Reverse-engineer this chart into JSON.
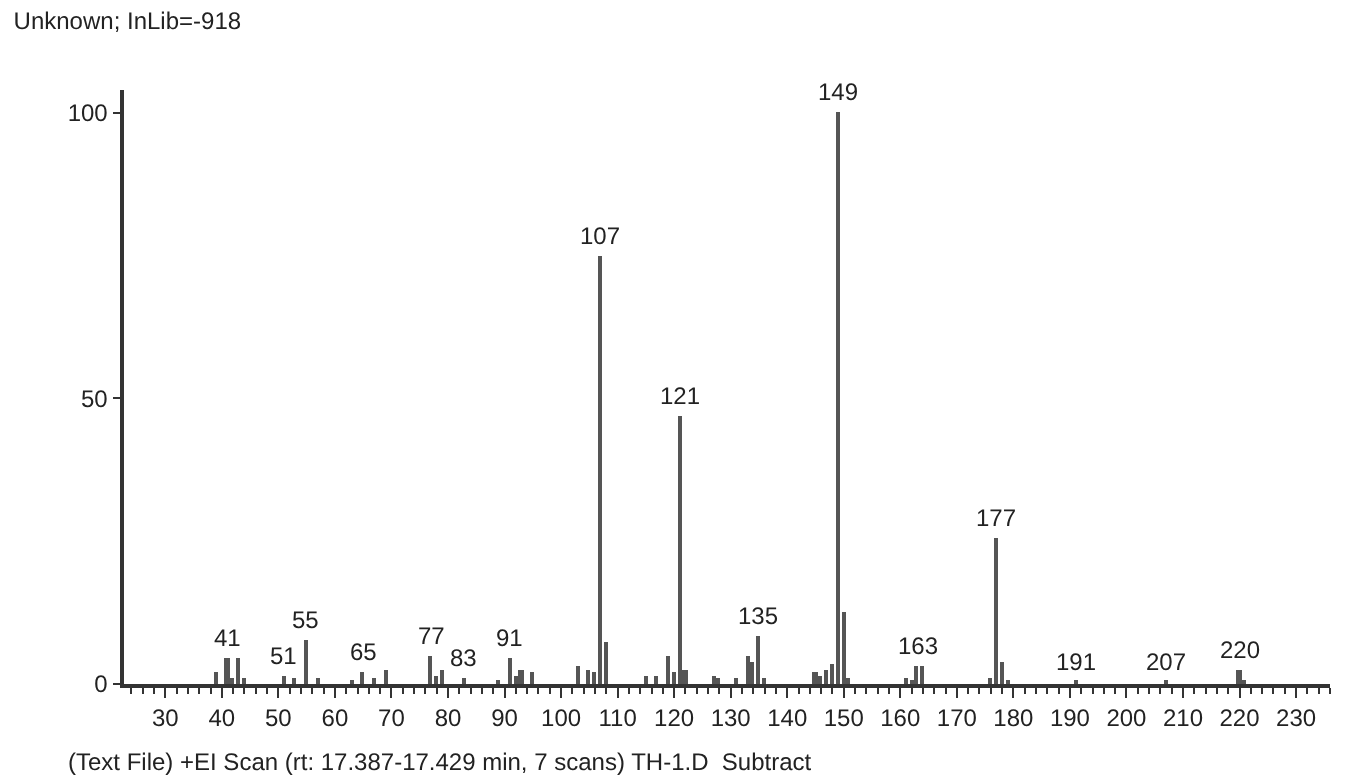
{
  "chart_data": {
    "type": "bar",
    "title": "Unknown; InLib=-918",
    "x": [
      39,
      41,
      42,
      43,
      44,
      51,
      53,
      55,
      57,
      63,
      65,
      67,
      69,
      77,
      78,
      79,
      83,
      89,
      91,
      92,
      93,
      95,
      103,
      105,
      106,
      107,
      108,
      115,
      117,
      119,
      120,
      121,
      122,
      127,
      128,
      131,
      133,
      134,
      135,
      136,
      145,
      146,
      147,
      148,
      149,
      150,
      151,
      161,
      162,
      163,
      164,
      176,
      177,
      178,
      179,
      191,
      207,
      220,
      221
    ],
    "values": [
      2,
      4.6,
      1,
      4.6,
      1,
      1.5,
      1,
      7.7,
      1,
      0.5,
      2,
      1,
      2.5,
      5,
      1.5,
      2.5,
      1,
      0.5,
      4.6,
      1.5,
      2.5,
      2,
      3,
      2.5,
      2,
      75,
      7.4,
      1.5,
      1.5,
      5,
      2,
      47,
      2.5,
      1.5,
      1,
      1,
      5,
      4,
      8.5,
      1,
      2,
      1.5,
      2.5,
      3.5,
      100,
      12.7,
      1,
      1,
      0.5,
      3,
      3,
      1,
      25.4,
      4,
      0.5,
      0.5,
      0.5,
      2.5,
      0.5
    ],
    "color": "#555555",
    "xlim": [
      22.7,
      236
    ],
    "xticks": [
      30,
      40,
      50,
      60,
      70,
      80,
      90,
      100,
      110,
      120,
      130,
      140,
      150,
      160,
      170,
      180,
      190,
      200,
      210,
      220,
      230
    ],
    "ylim": [
      0,
      104
    ],
    "yticks": [
      0,
      50,
      100
    ],
    "annotations": [
      "(Text File) +EI Scan (rt: 17.387-17.429 min, 7 scans) TH-1.D  Subtract",
      {
        "text": "41",
        "x": 41,
        "y": 4.6
      },
      {
        "text": "51",
        "x": 51,
        "y": 1.5
      },
      {
        "text": "55",
        "x": 55,
        "y": 7.7
      },
      {
        "text": "65",
        "x": 65,
        "y": 2
      },
      {
        "text": "77",
        "x": 77,
        "y": 5
      },
      {
        "text": "83",
        "x": 83,
        "y": 1
      },
      {
        "text": "91",
        "x": 91,
        "y": 4.6
      },
      {
        "text": "107",
        "x": 107,
        "y": 75
      },
      {
        "text": "121",
        "x": 121,
        "y": 47
      },
      {
        "text": "135",
        "x": 135,
        "y": 8.5
      },
      {
        "text": "149",
        "x": 149,
        "y": 100
      },
      {
        "text": "163",
        "x": 163,
        "y": 3
      },
      {
        "text": "177",
        "x": 177,
        "y": 25.4
      },
      {
        "text": "191",
        "x": 191,
        "y": 0.5
      },
      {
        "text": "207",
        "x": 207,
        "y": 0.5
      },
      {
        "text": "220",
        "x": 220,
        "y": 2.5
      }
    ]
  }
}
